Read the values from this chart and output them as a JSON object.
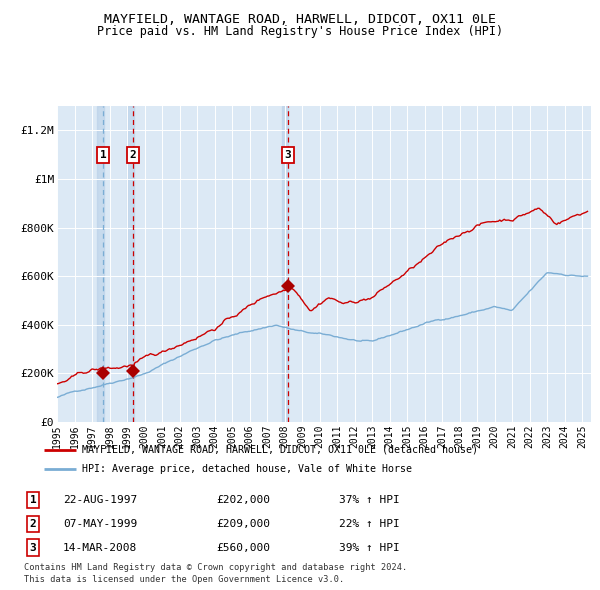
{
  "title": "MAYFIELD, WANTAGE ROAD, HARWELL, DIDCOT, OX11 0LE",
  "subtitle": "Price paid vs. HM Land Registry's House Price Index (HPI)",
  "bg_color": "#dce9f5",
  "grid_color": "#ffffff",
  "red_line_color": "#cc0000",
  "blue_line_color": "#7aadd4",
  "transactions": [
    {
      "label": "1",
      "date_num": 1997.64,
      "price": 202000,
      "pct": "37%",
      "date_str": "22-AUG-1997"
    },
    {
      "label": "2",
      "date_num": 1999.35,
      "price": 209000,
      "pct": "22%",
      "date_str": "07-MAY-1999"
    },
    {
      "label": "3",
      "date_num": 2008.2,
      "price": 560000,
      "pct": "39%",
      "date_str": "14-MAR-2008"
    }
  ],
  "xmin": 1995.0,
  "xmax": 2025.5,
  "ymin": 0,
  "ymax": 1300000,
  "yticks": [
    0,
    200000,
    400000,
    600000,
    800000,
    1000000,
    1200000
  ],
  "ytick_labels": [
    "£0",
    "£200K",
    "£400K",
    "£600K",
    "£800K",
    "£1M",
    "£1.2M"
  ],
  "xticks": [
    1995,
    1996,
    1997,
    1998,
    1999,
    2000,
    2001,
    2002,
    2003,
    2004,
    2005,
    2006,
    2007,
    2008,
    2009,
    2010,
    2011,
    2012,
    2013,
    2014,
    2015,
    2016,
    2017,
    2018,
    2019,
    2020,
    2021,
    2022,
    2023,
    2024,
    2025
  ],
  "legend_red_label": "MAYFIELD, WANTAGE ROAD, HARWELL, DIDCOT, OX11 0LE (detached house)",
  "legend_blue_label": "HPI: Average price, detached house, Vale of White Horse",
  "footer1": "Contains HM Land Registry data © Crown copyright and database right 2024.",
  "footer2": "This data is licensed under the Open Government Licence v3.0."
}
